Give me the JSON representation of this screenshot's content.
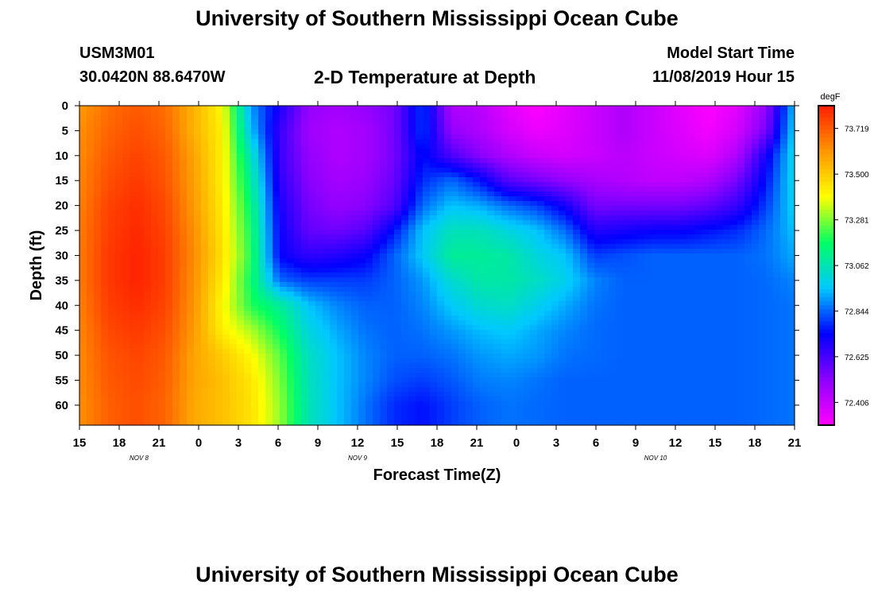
{
  "header": {
    "title": "University of Southern Mississippi Ocean Cube",
    "station_id": "USM3M01",
    "station_coords": "30.0420N 88.6470W",
    "plot_title": "2-D Temperature at Depth",
    "run_label": "Model Start Time",
    "run_value": "11/08/2019 Hour 15"
  },
  "footer": {
    "title": "University of Southern Mississippi Ocean Cube"
  },
  "chart_data": {
    "type": "heatmap",
    "title": "2-D Temperature at Depth",
    "xlabel": "Forecast Time(Z)",
    "ylabel": "Depth (ft)",
    "x_tick_labels": [
      "15",
      "18",
      "21",
      "0",
      "3",
      "6",
      "9",
      "12",
      "15",
      "18",
      "21",
      "0",
      "3",
      "6",
      "9",
      "12",
      "15",
      "18",
      "21"
    ],
    "x_hours": [
      0,
      3,
      6,
      9,
      12,
      15,
      18,
      21,
      24,
      27,
      30,
      33,
      36,
      39,
      42,
      45,
      48,
      51,
      54
    ],
    "date_labels": [
      {
        "label": "NOV 8",
        "hour": 4.5
      },
      {
        "label": "NOV 9",
        "hour": 21
      },
      {
        "label": "NOV 10",
        "hour": 43.5
      }
    ],
    "y_ticks": [
      0,
      5,
      10,
      15,
      20,
      25,
      30,
      35,
      40,
      45,
      50,
      55,
      60
    ],
    "ylim": [
      0,
      64
    ],
    "colorbar": {
      "unit": "degF",
      "min": 72.297,
      "max": 73.828,
      "tick_values": [
        73.719,
        73.5,
        73.281,
        73.062,
        72.844,
        72.625,
        72.406
      ],
      "tick_labels": [
        "73.719",
        "73.500",
        "73.281",
        "73.062",
        "72.844",
        "72.625",
        "72.406"
      ]
    },
    "grid_depths": [
      0,
      5,
      10,
      15,
      20,
      25,
      30,
      35,
      40,
      45,
      50,
      55,
      60,
      64
    ],
    "grid_hours": [
      0,
      3,
      6,
      9,
      12,
      15,
      18,
      21,
      24,
      27,
      30,
      33,
      36,
      39,
      42,
      45,
      48,
      51,
      54
    ],
    "values": [
      [
        73.6,
        73.68,
        73.72,
        73.68,
        73.55,
        73.4,
        72.9,
        72.7,
        72.5,
        72.47,
        72.5,
        72.55,
        72.8,
        72.45,
        72.43,
        72.35,
        72.3,
        72.35,
        72.4,
        72.45,
        72.4,
        72.35,
        72.3,
        72.35,
        72.5,
        72.95
      ],
      [
        73.62,
        73.7,
        73.74,
        73.7,
        73.55,
        73.42,
        72.95,
        72.65,
        72.48,
        72.45,
        72.47,
        72.55,
        72.8,
        72.5,
        72.45,
        72.38,
        72.33,
        72.36,
        72.4,
        72.45,
        72.4,
        72.36,
        72.32,
        72.38,
        72.55,
        72.98
      ],
      [
        73.63,
        73.72,
        73.76,
        73.72,
        73.58,
        73.42,
        73.05,
        72.65,
        72.5,
        72.45,
        72.47,
        72.55,
        72.75,
        72.62,
        72.52,
        72.45,
        72.4,
        72.38,
        72.4,
        72.43,
        72.4,
        72.38,
        72.36,
        72.45,
        72.7,
        73.0
      ],
      [
        73.64,
        73.74,
        73.78,
        73.73,
        73.59,
        73.42,
        73.1,
        72.67,
        72.52,
        72.47,
        72.49,
        72.57,
        72.78,
        72.85,
        72.75,
        72.6,
        72.55,
        72.5,
        72.46,
        72.44,
        72.42,
        72.42,
        72.45,
        72.55,
        72.75,
        73.0
      ],
      [
        73.65,
        73.76,
        73.8,
        73.75,
        73.6,
        73.43,
        73.15,
        72.7,
        72.55,
        72.5,
        72.52,
        72.6,
        72.85,
        72.95,
        72.92,
        72.85,
        72.8,
        72.7,
        72.55,
        72.55,
        72.55,
        72.55,
        72.58,
        72.65,
        72.8,
        72.98
      ],
      [
        73.66,
        73.77,
        73.81,
        73.76,
        73.62,
        73.44,
        73.18,
        72.72,
        72.58,
        72.56,
        72.6,
        72.75,
        72.95,
        73.05,
        73.05,
        73.0,
        72.95,
        72.85,
        72.68,
        72.7,
        72.72,
        72.72,
        72.75,
        72.78,
        72.85,
        72.95
      ],
      [
        73.66,
        73.78,
        73.82,
        73.77,
        73.63,
        73.45,
        73.2,
        72.73,
        72.66,
        72.68,
        72.72,
        72.84,
        72.96,
        73.1,
        73.1,
        73.08,
        73.0,
        72.95,
        72.8,
        72.82,
        72.84,
        72.84,
        72.84,
        72.84,
        72.86,
        72.92
      ],
      [
        73.66,
        73.78,
        73.82,
        73.77,
        73.62,
        73.43,
        73.17,
        72.85,
        72.8,
        72.8,
        72.8,
        72.84,
        72.9,
        73.02,
        73.08,
        73.08,
        73.04,
        72.98,
        72.88,
        72.84,
        72.84,
        72.84,
        72.84,
        72.84,
        72.85,
        72.88
      ],
      [
        73.65,
        73.77,
        73.8,
        73.76,
        73.61,
        73.4,
        73.2,
        73.1,
        72.95,
        72.88,
        72.84,
        72.84,
        72.88,
        72.96,
        73.02,
        73.04,
        72.98,
        72.92,
        72.86,
        72.84,
        72.84,
        72.84,
        72.84,
        72.84,
        72.85,
        72.86
      ],
      [
        73.64,
        73.75,
        73.78,
        73.74,
        73.6,
        73.42,
        73.32,
        73.18,
        73.0,
        72.92,
        72.86,
        72.84,
        72.86,
        72.9,
        72.94,
        72.96,
        72.92,
        72.88,
        72.85,
        72.84,
        72.84,
        72.84,
        72.84,
        72.84,
        72.85,
        72.86
      ],
      [
        73.63,
        73.73,
        73.76,
        73.72,
        73.58,
        73.5,
        73.4,
        73.25,
        73.04,
        72.95,
        72.88,
        72.84,
        72.84,
        72.86,
        72.9,
        72.92,
        72.9,
        72.86,
        72.85,
        72.84,
        72.84,
        72.84,
        72.84,
        72.84,
        72.85,
        72.86
      ],
      [
        73.63,
        73.72,
        73.75,
        73.71,
        73.58,
        73.52,
        73.44,
        73.28,
        73.05,
        72.95,
        72.88,
        72.82,
        72.8,
        72.83,
        72.87,
        72.88,
        72.86,
        72.84,
        72.84,
        72.84,
        72.84,
        72.84,
        72.84,
        72.84,
        72.85,
        72.86
      ],
      [
        73.62,
        73.71,
        73.74,
        73.7,
        73.57,
        73.52,
        73.45,
        73.3,
        73.06,
        72.95,
        72.86,
        72.78,
        72.75,
        72.8,
        72.84,
        72.86,
        72.85,
        72.84,
        72.84,
        72.84,
        72.84,
        72.84,
        72.84,
        72.84,
        72.85,
        72.86
      ],
      [
        73.62,
        73.71,
        73.74,
        73.7,
        73.57,
        73.52,
        73.45,
        73.3,
        73.06,
        72.95,
        72.86,
        72.78,
        72.75,
        72.8,
        72.84,
        72.86,
        72.85,
        72.84,
        72.84,
        72.84,
        72.84,
        72.84,
        72.84,
        72.84,
        72.85,
        72.86
      ]
    ],
    "value_grid_hours_step": 2.16,
    "grid": false,
    "legend_placement": "right"
  }
}
